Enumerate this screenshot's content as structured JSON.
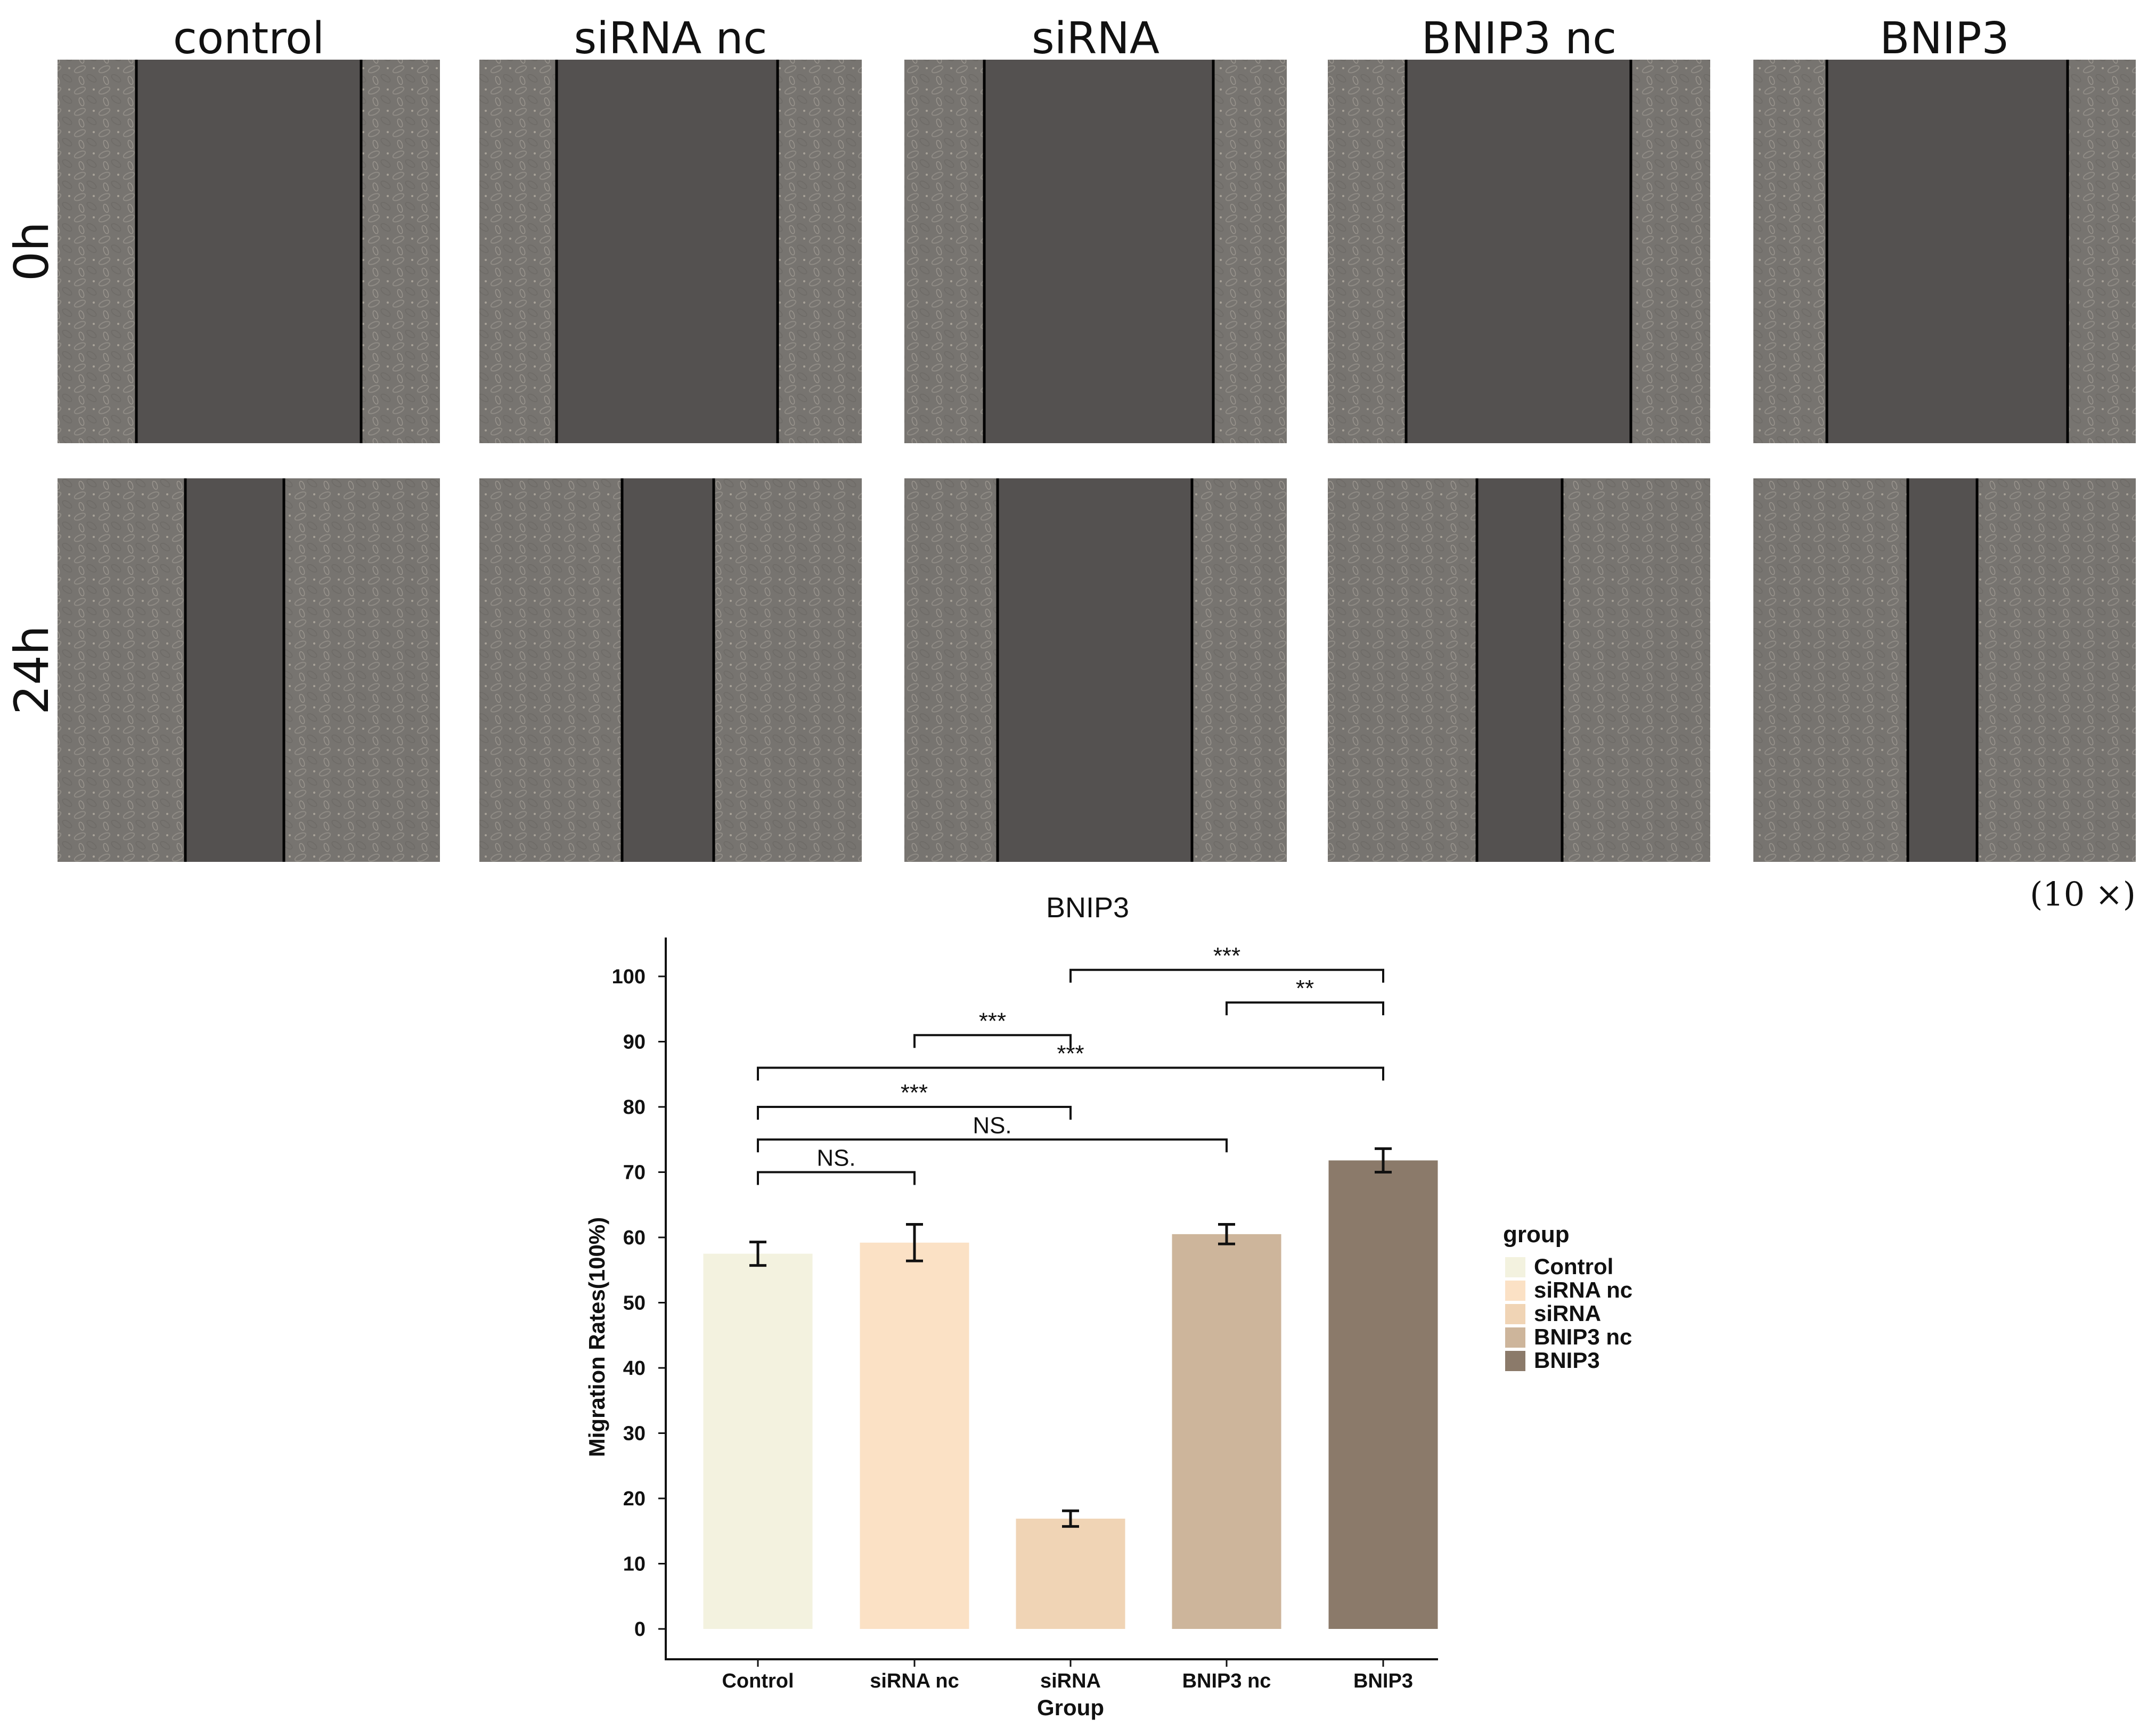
{
  "micrographs": {
    "columns": [
      "control",
      "siRNA nc",
      "siRNA",
      "BNIP3 nc",
      "BNIP3"
    ],
    "rows": [
      "0h",
      "24h"
    ],
    "magnification": "(10 ×)",
    "background_color": "#545150",
    "cell_color": "#777470"
  },
  "chart_data": {
    "type": "bar",
    "title": "BNIP3",
    "xlabel": "Group",
    "ylabel": "Migration Rates(100%)",
    "categories": [
      "Control",
      "siRNA nc",
      "siRNA",
      "BNIP3 nc",
      "BNIP3"
    ],
    "values": [
      57.5,
      59.2,
      16.9,
      60.5,
      71.8
    ],
    "errors": [
      1.8,
      2.8,
      1.2,
      1.5,
      1.8
    ],
    "colors": [
      "#f3f2df",
      "#fbe1c5",
      "#f0d4b5",
      "#cdb59b",
      "#8b7a6a"
    ],
    "ylim": [
      0,
      105
    ],
    "yticks": [
      0,
      10,
      20,
      30,
      40,
      50,
      60,
      70,
      80,
      90,
      100
    ],
    "grid": false,
    "legend": {
      "title": "group",
      "placement": "right",
      "entries": [
        "Control",
        "siRNA nc",
        "siRNA",
        "BNIP3 nc",
        "BNIP3"
      ]
    },
    "significance": [
      {
        "from": "Control",
        "to": "siRNA nc",
        "level": 70,
        "label": "NS."
      },
      {
        "from": "Control",
        "to": "BNIP3 nc",
        "level": 75,
        "label": "NS."
      },
      {
        "from": "Control",
        "to": "siRNA",
        "level": 80,
        "label": "***"
      },
      {
        "from": "Control",
        "to": "BNIP3",
        "level": 86,
        "label": "***"
      },
      {
        "from": "siRNA nc",
        "to": "siRNA",
        "level": 91,
        "label": "***"
      },
      {
        "from": "BNIP3 nc",
        "to": "BNIP3",
        "level": 96,
        "label": "**"
      },
      {
        "from": "siRNA",
        "to": "BNIP3",
        "level": 101,
        "label": "***"
      }
    ]
  }
}
